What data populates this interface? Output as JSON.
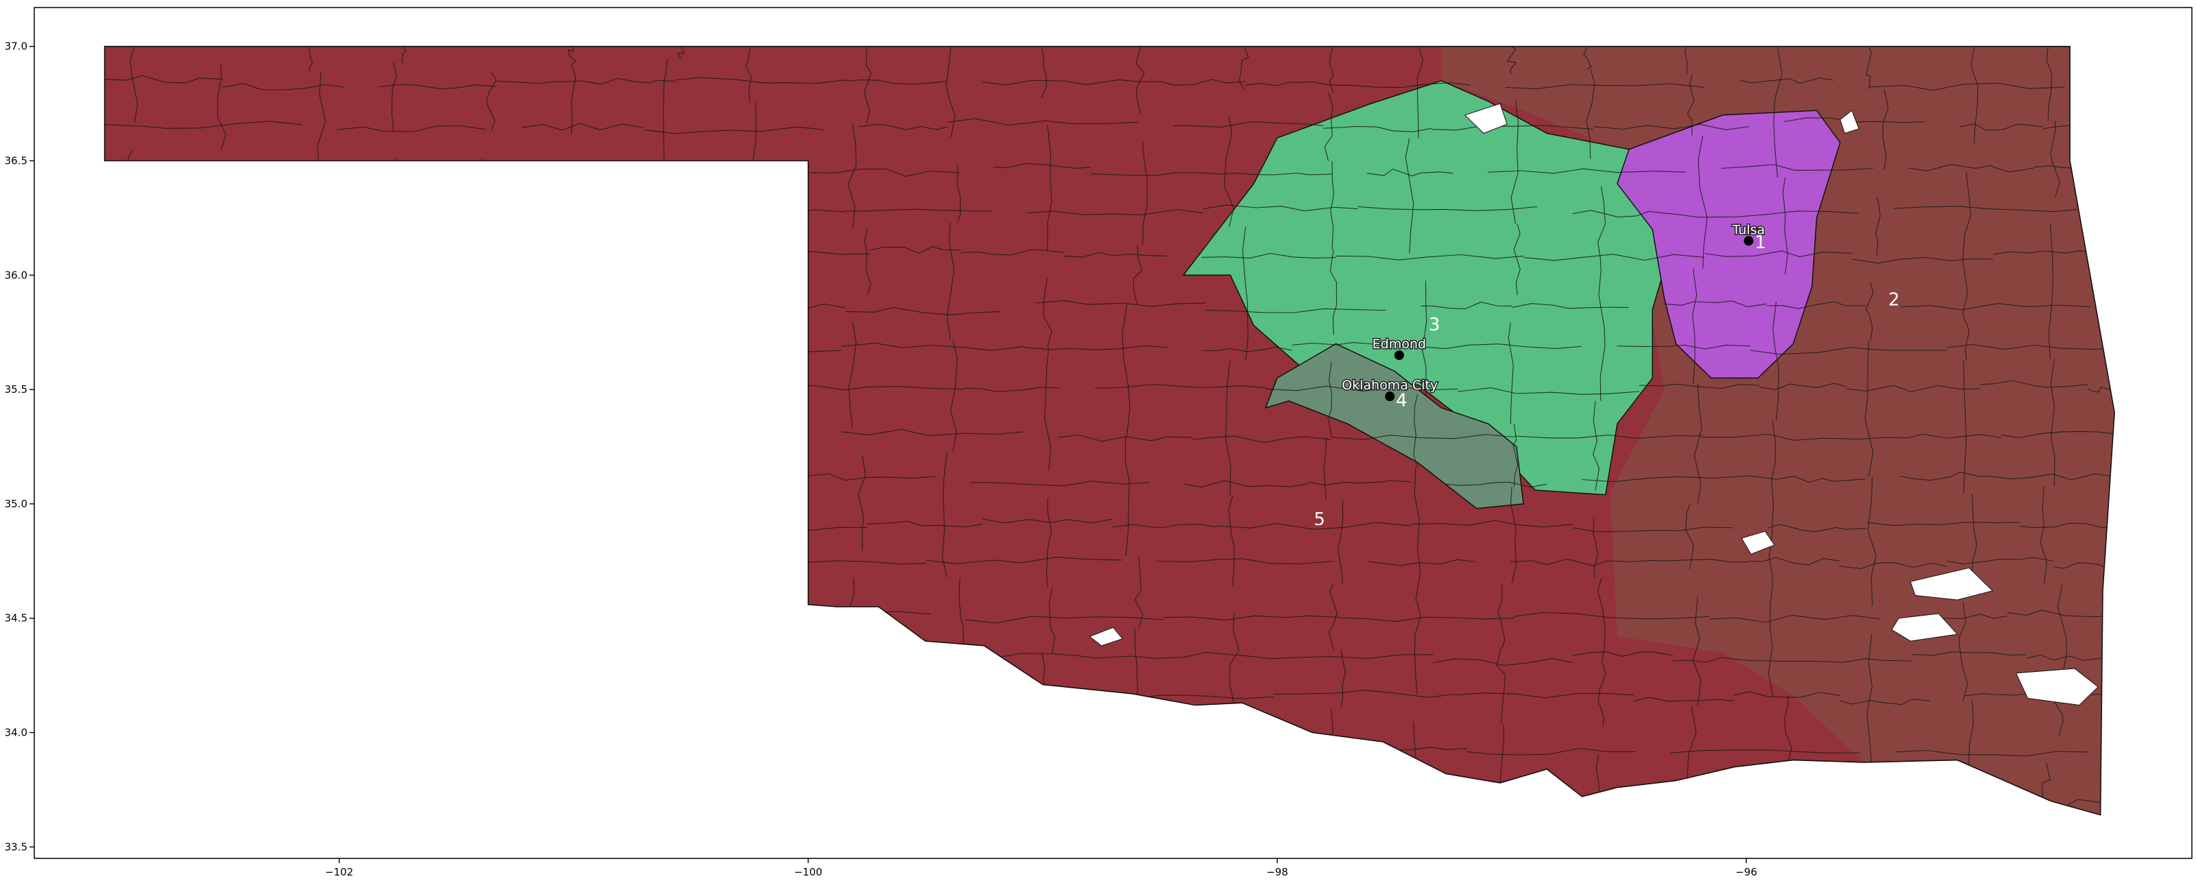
{
  "chart_data": {
    "type": "map",
    "subject": "Oklahoma congressional districts",
    "xlim": [
      -103.3,
      -94.1
    ],
    "ylim": [
      33.45,
      37.17
    ],
    "x_ticks": [
      {
        "value": -102,
        "label": "−102"
      },
      {
        "value": -100,
        "label": "−100"
      },
      {
        "value": -98,
        "label": "−98"
      },
      {
        "value": -96,
        "label": "−96"
      }
    ],
    "y_ticks": [
      {
        "value": 33.5,
        "label": "33.5"
      },
      {
        "value": 34.0,
        "label": "34.0"
      },
      {
        "value": 34.5,
        "label": "34.5"
      },
      {
        "value": 35.0,
        "label": "35.0"
      },
      {
        "value": 35.5,
        "label": "35.5"
      },
      {
        "value": 36.0,
        "label": "36.0"
      },
      {
        "value": 36.5,
        "label": "36.5"
      },
      {
        "value": 37.0,
        "label": "37.0"
      }
    ],
    "districts": [
      {
        "id": "1",
        "label": "1",
        "color": "#b257d1",
        "label_lon": -95.94,
        "label_lat": 36.14
      },
      {
        "id": "2",
        "label": "2",
        "color": "#8a4440",
        "label_lon": -95.37,
        "label_lat": 35.89
      },
      {
        "id": "3",
        "label": "3",
        "color": "#58bf83",
        "label_lon": -97.33,
        "label_lat": 35.78
      },
      {
        "id": "4",
        "label": "4",
        "color": "#6a8e75",
        "label_lon": -97.47,
        "label_lat": 35.45
      },
      {
        "id": "5",
        "label": "5",
        "color": "#93323a",
        "label_lon": -97.82,
        "label_lat": 34.93
      }
    ],
    "cities": [
      {
        "name": "Tulsa",
        "lon": -95.99,
        "lat": 36.15
      },
      {
        "name": "Edmond",
        "lon": -97.48,
        "lat": 35.65
      },
      {
        "name": "Oklahoma City",
        "lon": -97.52,
        "lat": 35.47
      }
    ]
  }
}
